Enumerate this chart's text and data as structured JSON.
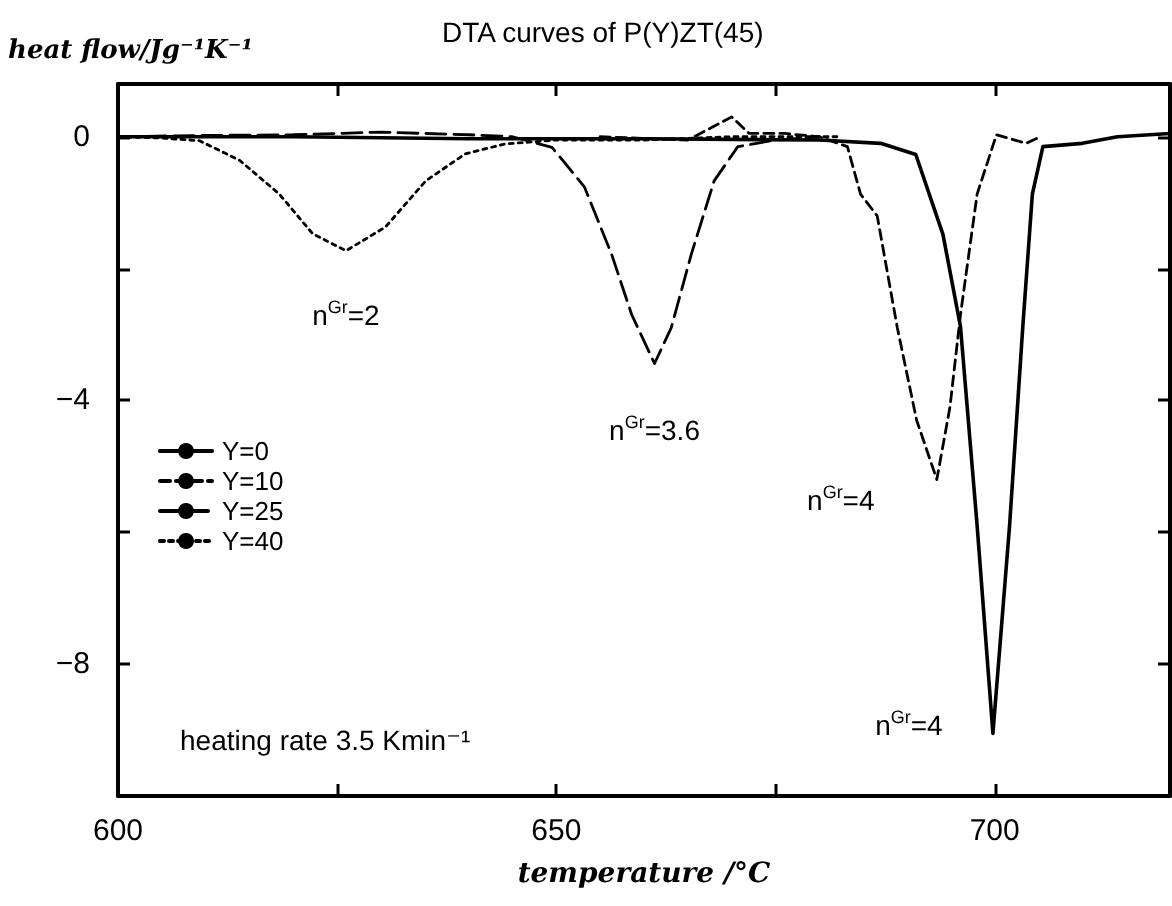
{
  "chart_data": {
    "type": "line",
    "title": "DTA curves of P(Y)ZT(45)",
    "xlabel": "temperature /°C",
    "ylabel": "heat flow/Jg⁻¹K⁻¹",
    "xlim": [
      600,
      720
    ],
    "ylim": [
      -10,
      0.8
    ],
    "xticks": [
      600,
      {
        "value": 625,
        "label": null
      },
      650,
      {
        "value": 675,
        "label": null
      },
      700
    ],
    "yticks": [
      -8,
      {
        "value": -6,
        "label": null
      },
      -4,
      {
        "value": -2,
        "label": null
      },
      0
    ],
    "legend": "left",
    "marker": "none",
    "grid": false,
    "series": [
      {
        "name": "Y=0",
        "color": "#000000",
        "line_style": "solid",
        "x": [
          600,
          620,
          640,
          660,
          680,
          687,
          691,
          694.1,
          696.1,
          698,
          699.8,
          701.7,
          703.2,
          704.3,
          705.5,
          710,
          714,
          720
        ],
        "values": [
          0,
          0,
          -0.03,
          -0.03,
          -0.05,
          -0.1,
          -0.27,
          -1.48,
          -2.88,
          -5.9,
          -9.05,
          -5.9,
          -2.9,
          -0.87,
          -0.15,
          -0.1,
          0,
          0.05
        ]
      },
      {
        "name": "Y=10",
        "color": "#000000",
        "line_style": "dashed",
        "x": [
          655,
          665,
          670,
          672,
          676,
          680,
          683.2,
          684.7,
          686.6,
          688.9,
          691.1,
          693.4,
          694.9,
          696.1,
          698,
          700.2,
          703.6,
          705.2
        ],
        "values": [
          0,
          -0.05,
          0.3,
          0.05,
          0.05,
          0,
          -0.15,
          -0.87,
          -1.2,
          -2.9,
          -4.3,
          -5.2,
          -4.1,
          -2.7,
          -0.87,
          0.03,
          -0.1,
          0
        ]
      },
      {
        "name": "Y=25",
        "color": "#000000",
        "line_style": "dashed",
        "x": [
          600,
          610,
          620,
          630,
          640,
          645,
          649.5,
          653.2,
          656.3,
          658.6,
          661.2,
          663.1,
          665.4,
          668,
          670.7,
          675,
          680
        ],
        "values": [
          0,
          0.02,
          0.03,
          0.07,
          0.03,
          0,
          -0.16,
          -0.76,
          -1.78,
          -2.7,
          -3.44,
          -2.9,
          -1.78,
          -0.67,
          -0.15,
          -0.05,
          0
        ]
      },
      {
        "name": "Y=40",
        "color": "#000000",
        "line_style": "dotted",
        "x": [
          600,
          605,
          609.3,
          613.9,
          618.4,
          622.2,
          626,
          630.5,
          635.1,
          639.6,
          644.1,
          650,
          660,
          670,
          682
        ],
        "values": [
          0,
          -0.02,
          -0.06,
          -0.36,
          -0.87,
          -1.47,
          -1.73,
          -1.37,
          -0.67,
          -0.26,
          -0.11,
          -0.05,
          -0.05,
          0,
          0
        ]
      }
    ],
    "annotations": [
      {
        "text": "n$^{Gr}$=2",
        "x": 626,
        "y": -1.73
      },
      {
        "text": "n$^{Gr}$=3.6",
        "x": 661.2,
        "y": -3.44
      },
      {
        "text": "n$^{Gr}$=4",
        "x": 693.4,
        "y": -5.2
      },
      {
        "text": "n$^{Gr}$=4",
        "x": 699.8,
        "y": -9.05
      },
      "heating rate 3.5 Kmin⁻¹"
    ]
  }
}
